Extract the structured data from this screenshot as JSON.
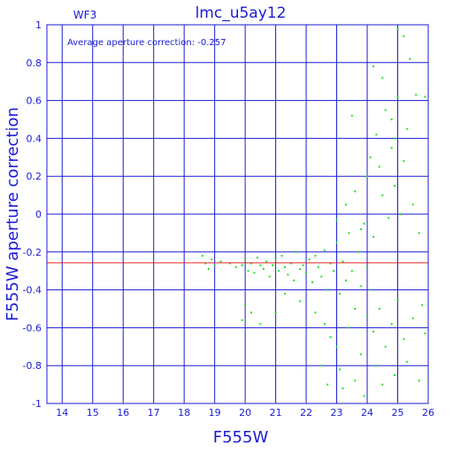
{
  "chart_data": {
    "type": "scatter",
    "title": "lmc_u5ay12",
    "chip_label": "WF3",
    "annotation": "Average aperture correction: -0.257",
    "xlabel": "F555W",
    "ylabel": "F555W aperture correction",
    "xlim": [
      13.5,
      26
    ],
    "ylim": [
      -1,
      1
    ],
    "xticks": [
      "14",
      "15",
      "16",
      "17",
      "18",
      "19",
      "20",
      "21",
      "22",
      "23",
      "24",
      "25",
      "26"
    ],
    "yticks": [
      "1",
      "0.8",
      "0.6",
      "0.4",
      "0.2",
      "0",
      "-0.2",
      "-0.4",
      "-0.6",
      "-0.8",
      "-1"
    ],
    "grid": true,
    "reference_line_y": -0.257,
    "colors": {
      "axes": "#1a1ad6",
      "points": "#22e022",
      "reference_line": "#e02020",
      "background": "#ffffff"
    },
    "series": [
      {
        "points": [
          [
            18.6,
            -0.22
          ],
          [
            18.7,
            -0.26
          ],
          [
            18.8,
            -0.29
          ],
          [
            18.9,
            -0.24
          ],
          [
            19.0,
            -0.27
          ],
          [
            19.2,
            -0.25
          ],
          [
            19.5,
            -0.26
          ],
          [
            19.7,
            -0.28
          ],
          [
            19.9,
            -0.27
          ],
          [
            20.0,
            -0.24
          ],
          [
            20.1,
            -0.3
          ],
          [
            20.2,
            -0.26
          ],
          [
            20.3,
            -0.31
          ],
          [
            20.4,
            -0.23
          ],
          [
            20.5,
            -0.27
          ],
          [
            20.6,
            -0.29
          ],
          [
            20.7,
            -0.25
          ],
          [
            20.8,
            -0.33
          ],
          [
            20.9,
            -0.27
          ],
          [
            21.0,
            -0.24
          ],
          [
            21.1,
            -0.3
          ],
          [
            21.2,
            -0.22
          ],
          [
            21.3,
            -0.28
          ],
          [
            21.4,
            -0.32
          ],
          [
            21.5,
            -0.26
          ],
          [
            21.6,
            -0.35
          ],
          [
            21.7,
            -0.2
          ],
          [
            21.8,
            -0.29
          ],
          [
            21.9,
            -0.27
          ],
          [
            22.0,
            -0.31
          ],
          [
            22.1,
            -0.24
          ],
          [
            22.2,
            -0.36
          ],
          [
            22.3,
            -0.22
          ],
          [
            22.4,
            -0.28
          ],
          [
            22.5,
            -0.33
          ],
          [
            22.6,
            -0.19
          ],
          [
            22.7,
            -0.4
          ],
          [
            22.8,
            -0.26
          ],
          [
            22.9,
            -0.3
          ],
          [
            23.0,
            -0.15
          ],
          [
            23.1,
            -0.42
          ],
          [
            23.2,
            -0.25
          ],
          [
            23.3,
            -0.35
          ],
          [
            23.4,
            -0.1
          ],
          [
            23.5,
            -0.3
          ],
          [
            23.6,
            -0.5
          ],
          [
            23.7,
            -0.2
          ],
          [
            23.8,
            -0.38
          ],
          [
            23.9,
            -0.05
          ],
          [
            24.0,
            -0.28
          ],
          [
            20.0,
            -0.48
          ],
          [
            20.2,
            -0.52
          ],
          [
            21.3,
            -0.42
          ],
          [
            21.8,
            -0.46
          ],
          [
            22.3,
            -0.52
          ],
          [
            22.6,
            -0.58
          ],
          [
            22.8,
            -0.65
          ],
          [
            23.0,
            -0.7
          ],
          [
            23.1,
            -0.82
          ],
          [
            23.4,
            -0.6
          ],
          [
            23.6,
            -0.88
          ],
          [
            23.8,
            -0.74
          ],
          [
            24.0,
            -0.54
          ],
          [
            23.2,
            -0.92
          ],
          [
            23.9,
            -0.96
          ],
          [
            24.1,
            -0.4
          ],
          [
            24.2,
            -0.62
          ],
          [
            24.3,
            -0.8
          ],
          [
            24.4,
            -0.5
          ],
          [
            24.5,
            -0.9
          ],
          [
            24.6,
            -0.7
          ],
          [
            24.8,
            -0.58
          ],
          [
            24.9,
            -0.85
          ],
          [
            25.0,
            -0.45
          ],
          [
            25.2,
            -0.66
          ],
          [
            25.3,
            -0.78
          ],
          [
            25.5,
            -0.55
          ],
          [
            25.7,
            -0.88
          ],
          [
            25.8,
            -0.48
          ],
          [
            25.9,
            -0.63
          ],
          [
            23.0,
            -0.03
          ],
          [
            23.3,
            0.05
          ],
          [
            23.6,
            0.12
          ],
          [
            23.8,
            -0.08
          ],
          [
            24.0,
            0.2
          ],
          [
            24.1,
            0.3
          ],
          [
            24.2,
            -0.12
          ],
          [
            24.3,
            0.42
          ],
          [
            24.4,
            0.25
          ],
          [
            24.5,
            0.1
          ],
          [
            24.6,
            0.55
          ],
          [
            24.7,
            -0.02
          ],
          [
            24.8,
            0.35
          ],
          [
            24.9,
            0.15
          ],
          [
            25.0,
            0.62
          ],
          [
            25.1,
            0.0
          ],
          [
            25.2,
            0.28
          ],
          [
            25.3,
            0.45
          ],
          [
            25.5,
            0.05
          ],
          [
            25.7,
            -0.1
          ],
          [
            24.2,
            0.78
          ],
          [
            24.5,
            0.72
          ],
          [
            24.8,
            0.5
          ],
          [
            25.0,
            0.98
          ],
          [
            25.2,
            0.94
          ],
          [
            25.4,
            0.82
          ],
          [
            25.6,
            0.63
          ],
          [
            25.9,
            0.62
          ],
          [
            23.5,
            0.52
          ],
          [
            24.9,
            0.4
          ],
          [
            22.5,
            -0.8
          ],
          [
            22.7,
            -0.9
          ],
          [
            20.5,
            -0.58
          ],
          [
            21.0,
            -0.52
          ],
          [
            19.9,
            -0.56
          ]
        ]
      }
    ]
  }
}
